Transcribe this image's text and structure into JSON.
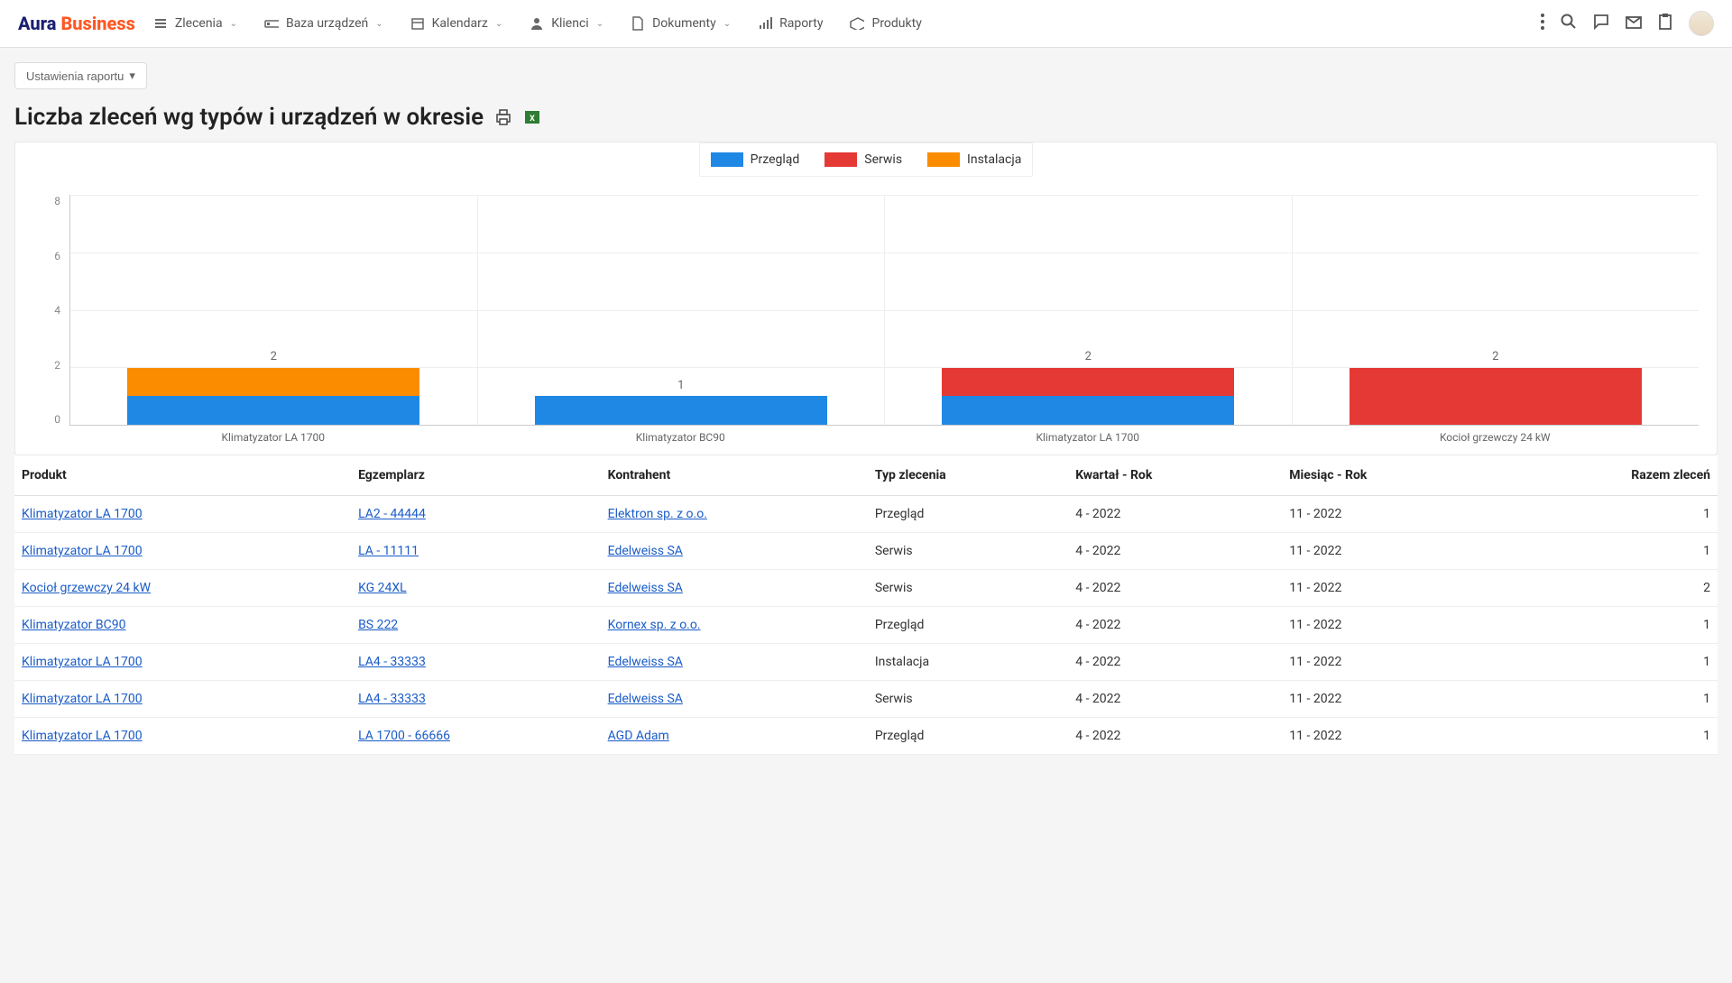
{
  "logo": {
    "part1": "Aura",
    "part2": "Business"
  },
  "nav": [
    {
      "label": "Zlecenia",
      "icon": "list",
      "dropdown": true
    },
    {
      "label": "Baza urządzeń",
      "icon": "device",
      "dropdown": true
    },
    {
      "label": "Kalendarz",
      "icon": "calendar",
      "dropdown": true
    },
    {
      "label": "Klienci",
      "icon": "person",
      "dropdown": true
    },
    {
      "label": "Dokumenty",
      "icon": "document",
      "dropdown": true
    },
    {
      "label": "Raporty",
      "icon": "chart",
      "dropdown": false
    },
    {
      "label": "Produkty",
      "icon": "box",
      "dropdown": false
    }
  ],
  "settings_button": "Ustawienia raportu",
  "title": "Liczba zleceń wg typów i urządzeń w okresie",
  "chart": {
    "type": "stacked-bar",
    "ylim": [
      0,
      8
    ],
    "ytick_step": 2,
    "yticks": [
      "8",
      "6",
      "4",
      "2",
      "0"
    ],
    "grid_color": "#eeeeee",
    "axis_color": "#cccccc",
    "background_color": "#ffffff",
    "legend": [
      {
        "label": "Przegląd",
        "color": "#1f88e5"
      },
      {
        "label": "Serwis",
        "color": "#e53935"
      },
      {
        "label": "Instalacja",
        "color": "#fb8c00"
      }
    ],
    "categories": [
      {
        "label": "Klimatyzator LA 1700",
        "total": "2",
        "segments": [
          {
            "series": "Przegląd",
            "value": 1,
            "color": "#1f88e5"
          },
          {
            "series": "Instalacja",
            "value": 1,
            "color": "#fb8c00"
          }
        ]
      },
      {
        "label": "Klimatyzator BC90",
        "total": "1",
        "segments": [
          {
            "series": "Przegląd",
            "value": 1,
            "color": "#1f88e5"
          }
        ]
      },
      {
        "label": "Klimatyzator LA 1700",
        "total": "2",
        "segments": [
          {
            "series": "Przegląd",
            "value": 1,
            "color": "#1f88e5"
          },
          {
            "series": "Serwis",
            "value": 1,
            "color": "#e53935"
          }
        ]
      },
      {
        "label": "Kocioł grzewczy 24 kW",
        "total": "2",
        "segments": [
          {
            "series": "Serwis",
            "value": 2,
            "color": "#e53935"
          }
        ]
      }
    ]
  },
  "table": {
    "columns": [
      "Produkt",
      "Egzemplarz",
      "Kontrahent",
      "Typ zlecenia",
      "Kwartał - Rok",
      "Miesiąc - Rok",
      "Razem zleceń"
    ],
    "rows": [
      {
        "produkt": "Klimatyzator LA 1700",
        "egzemplarz": "LA2 - 44444",
        "kontrahent": "Elektron sp. z o.o.",
        "typ": "Przegląd",
        "kwartal": "4 - 2022",
        "miesiac": "11 - 2022",
        "razem": "1"
      },
      {
        "produkt": "Klimatyzator LA 1700",
        "egzemplarz": "LA - 11111",
        "kontrahent": "Edelweiss SA",
        "typ": "Serwis",
        "kwartal": "4 - 2022",
        "miesiac": "11 - 2022",
        "razem": "1"
      },
      {
        "produkt": "Kocioł grzewczy 24 kW",
        "egzemplarz": "KG 24XL",
        "kontrahent": "Edelweiss SA",
        "typ": "Serwis",
        "kwartal": "4 - 2022",
        "miesiac": "11 - 2022",
        "razem": "2"
      },
      {
        "produkt": "Klimatyzator BC90",
        "egzemplarz": "BS 222",
        "kontrahent": "Kornex sp. z o.o.",
        "typ": "Przegląd",
        "kwartal": "4 - 2022",
        "miesiac": "11 - 2022",
        "razem": "1"
      },
      {
        "produkt": "Klimatyzator LA 1700",
        "egzemplarz": "LA4 - 33333",
        "kontrahent": "Edelweiss SA",
        "typ": "Instalacja",
        "kwartal": "4 - 2022",
        "miesiac": "11 - 2022",
        "razem": "1"
      },
      {
        "produkt": "Klimatyzator LA 1700",
        "egzemplarz": "LA4 - 33333",
        "kontrahent": "Edelweiss SA",
        "typ": "Serwis",
        "kwartal": "4 - 2022",
        "miesiac": "11 - 2022",
        "razem": "1"
      },
      {
        "produkt": "Klimatyzator LA 1700",
        "egzemplarz": "LA 1700 - 66666",
        "kontrahent": "AGD Adam",
        "typ": "Przegląd",
        "kwartal": "4 - 2022",
        "miesiac": "11 - 2022",
        "razem": "1"
      }
    ]
  }
}
